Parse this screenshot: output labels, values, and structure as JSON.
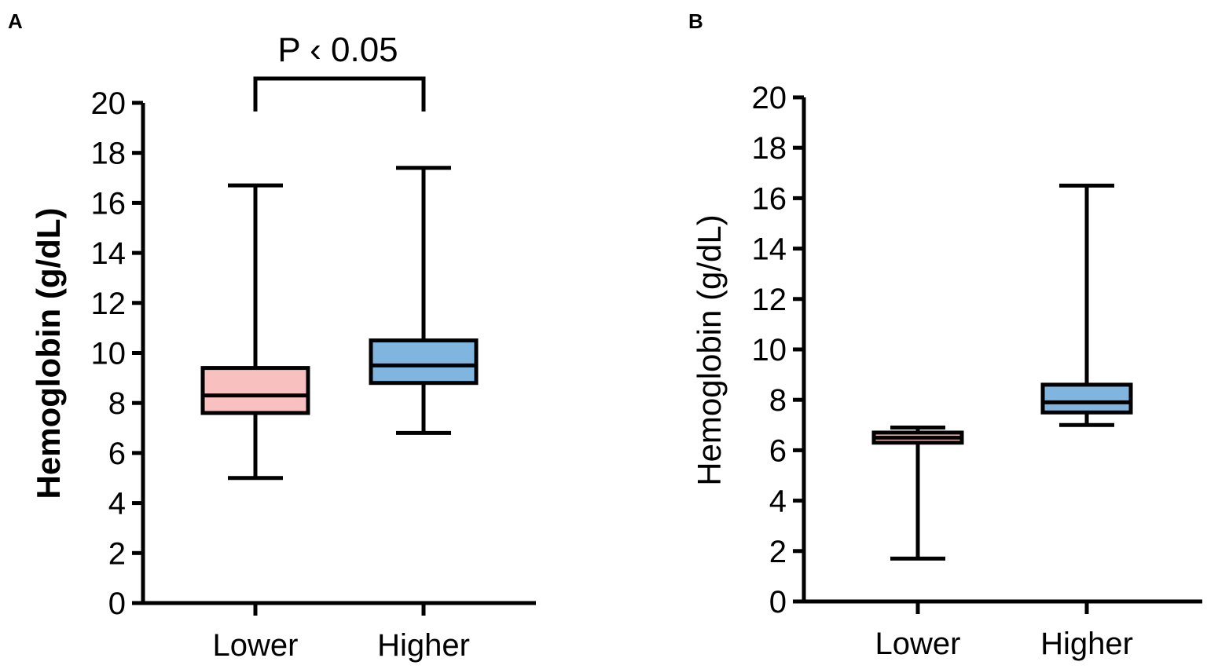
{
  "chart_data": [
    {
      "panel": "A",
      "type": "boxplot",
      "ylabel": "Hemoglobin (g/dL)",
      "ylabel_bold": true,
      "ylim": [
        0,
        20
      ],
      "yticks": [
        "0",
        "2",
        "4",
        "6",
        "8",
        "10",
        "12",
        "14",
        "16",
        "18",
        "20"
      ],
      "categories": [
        "Lower",
        "Higher"
      ],
      "boxes": [
        {
          "name": "Lower",
          "min": 5.0,
          "q1": 7.6,
          "median": 8.3,
          "q3": 9.4,
          "max": 16.7,
          "color": "#f9c0c0"
        },
        {
          "name": "Higher",
          "min": 6.8,
          "q1": 8.8,
          "median": 9.5,
          "q3": 10.5,
          "max": 17.4,
          "color": "#7fb5de"
        }
      ],
      "annotation": {
        "text": "P ‹ 0.05",
        "between": [
          "Lower",
          "Higher"
        ],
        "y": 21,
        "drop_to": 19.8
      }
    },
    {
      "panel": "B",
      "type": "boxplot",
      "ylabel": "Hemoglobin (g/dL)",
      "ylabel_bold": false,
      "ylim": [
        0,
        20
      ],
      "yticks": [
        "0",
        "2",
        "4",
        "6",
        "8",
        "10",
        "12",
        "14",
        "16",
        "18",
        "20"
      ],
      "categories": [
        "Lower",
        "Higher"
      ],
      "boxes": [
        {
          "name": "Lower",
          "min": 1.7,
          "q1": 6.3,
          "median": 6.5,
          "q3": 6.7,
          "max": 6.9,
          "color": "#f9c0c0"
        },
        {
          "name": "Higher",
          "min": 7.0,
          "q1": 7.5,
          "median": 7.9,
          "q3": 8.6,
          "max": 16.5,
          "color": "#7fb5de"
        }
      ]
    }
  ]
}
